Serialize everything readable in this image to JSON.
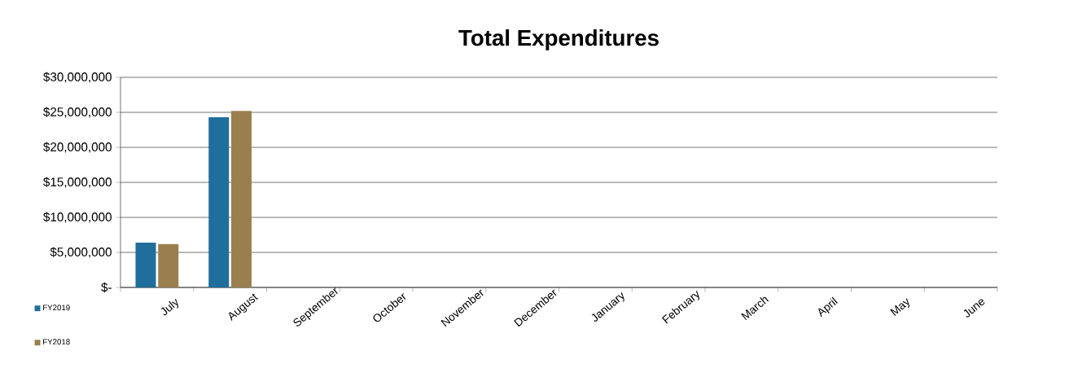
{
  "chart_data": {
    "type": "bar",
    "title": "Total Expenditures",
    "categories": [
      "July",
      "August",
      "September",
      "October",
      "November",
      "December",
      "January",
      "February",
      "March",
      "April",
      "May",
      "June"
    ],
    "series": [
      {
        "name": "FY2019",
        "color": "#1f6e9c",
        "values": [
          6400000,
          24300000,
          null,
          null,
          null,
          null,
          null,
          null,
          null,
          null,
          null,
          null
        ]
      },
      {
        "name": "FY2018",
        "color": "#9a7f4e",
        "values": [
          6200000,
          25200000,
          null,
          null,
          null,
          null,
          null,
          null,
          null,
          null,
          null,
          null
        ]
      }
    ],
    "ylim": [
      0,
      30000000
    ],
    "yticks": [
      {
        "value": 0,
        "label": "$-"
      },
      {
        "value": 5000000,
        "label": "$5,000,000"
      },
      {
        "value": 10000000,
        "label": "$10,000,000"
      },
      {
        "value": 15000000,
        "label": "$15,000,000"
      },
      {
        "value": 20000000,
        "label": "$20,000,000"
      },
      {
        "value": 25000000,
        "label": "$25,000,000"
      },
      {
        "value": 30000000,
        "label": "$30,000,000"
      }
    ],
    "grid": "y",
    "legend": "bottom left"
  }
}
